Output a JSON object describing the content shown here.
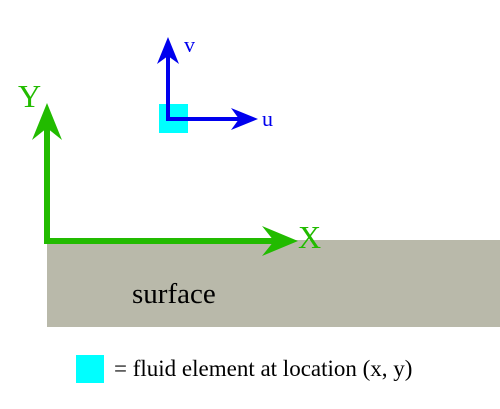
{
  "colors": {
    "axis_color": "#22bb00",
    "velocity_color": "#0000ee",
    "fluid_element_color": "#00ffff",
    "surface_color": "#b9b9aa",
    "text_color": "#000000"
  },
  "axes": {
    "x_label": "X",
    "y_label": "Y"
  },
  "velocity": {
    "u_label": "u",
    "v_label": "v"
  },
  "surface": {
    "label": "surface"
  },
  "legend": {
    "text": "= fluid element at location (x, y)"
  }
}
